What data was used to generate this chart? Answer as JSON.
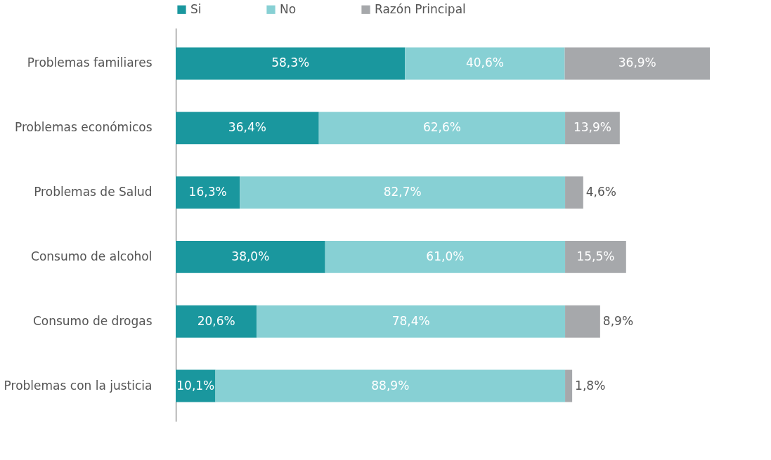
{
  "chart_data": {
    "type": "bar",
    "orientation": "horizontal",
    "stacked": true,
    "legend": "top",
    "grid": false,
    "categories": [
      "Problemas familiares",
      "Problemas económicos",
      "Problemas de Salud",
      "Consumo de alcohol",
      "Consumo de drogas",
      "Problemas con la justicia"
    ],
    "series": [
      {
        "name": "Si",
        "color": "#1a979e",
        "values": [
          58.3,
          36.4,
          16.3,
          38.0,
          20.6,
          10.1
        ],
        "value_labels": [
          "58,3%",
          "36,4%",
          "16,3%",
          "38,0%",
          "20,6%",
          "10,1%"
        ]
      },
      {
        "name": "No",
        "color": "#87d0d4",
        "values": [
          40.6,
          62.6,
          82.7,
          61.0,
          78.4,
          88.9
        ],
        "value_labels": [
          "40,6%",
          "62,6%",
          "82,7%",
          "61,0%",
          "78,4%",
          "88,9%"
        ]
      },
      {
        "name": "Razón Principal",
        "color": "#a6a8ab",
        "values": [
          36.9,
          13.9,
          4.6,
          15.5,
          8.9,
          1.8
        ],
        "value_labels": [
          "36,9%",
          "13,9%",
          "4,6%",
          "15,5%",
          "8,9%",
          "1,8%"
        ]
      }
    ]
  }
}
